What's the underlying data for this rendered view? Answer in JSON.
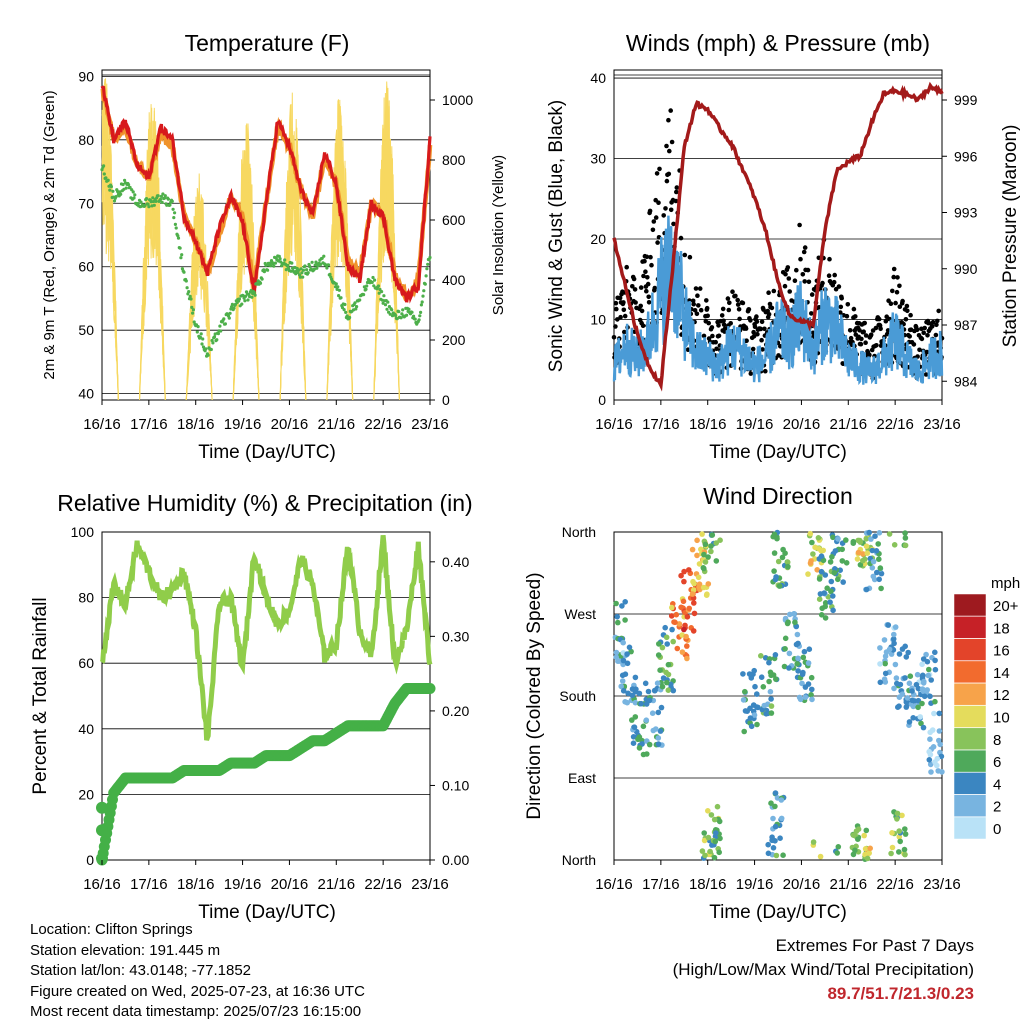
{
  "colors": {
    "temp2m": "#d7191c",
    "temp9m": "#f0932b",
    "dewpoint": "#4daf4a",
    "solar": "#f7d860",
    "wind": "#4a9bd6",
    "gust": "#000000",
    "pressure": "#a31a1a",
    "rh": "#90cd4a",
    "rain": "#44b047"
  },
  "x_ticks": [
    "16/16",
    "17/16",
    "18/16",
    "19/16",
    "20/16",
    "21/16",
    "22/16",
    "23/16"
  ],
  "chart_data": [
    {
      "id": "temperature",
      "type": "line",
      "title": "Temperature (F)",
      "xlabel": "Time (Day/UTC)",
      "ylabel": "2m & 9m T (Red, Orange) & 2m Td (Green)",
      "y2label": "Solar Insolation (Yellow)",
      "ylim": [
        39,
        91
      ],
      "y2lim": [
        0,
        1100
      ],
      "y_ticks": [
        "40",
        "50",
        "60",
        "70",
        "80",
        "90"
      ],
      "y2_ticks": [
        "0",
        "200",
        "400",
        "600",
        "800",
        "1000"
      ],
      "x": [
        0,
        0.25,
        0.5,
        0.75,
        1,
        1.25,
        1.5,
        1.75,
        2,
        2.25,
        2.5,
        2.75,
        3,
        3.25,
        3.5,
        3.75,
        4,
        4.25,
        4.5,
        4.75,
        5,
        5.25,
        5.5,
        5.75,
        6,
        6.25,
        6.5,
        6.75,
        7
      ],
      "series": [
        {
          "values": [
            89,
            80,
            83,
            76,
            74,
            82,
            80,
            68,
            64,
            59,
            66,
            71,
            67,
            56,
            70,
            83,
            79,
            72,
            68,
            78,
            73,
            60,
            58,
            70,
            68,
            58,
            55,
            57,
            80
          ]
        },
        {
          "values": [
            88,
            80,
            82,
            76,
            74,
            81,
            79,
            68,
            64,
            59,
            65,
            71,
            68,
            57,
            70,
            82,
            79,
            72,
            68,
            77,
            73,
            61,
            59,
            70,
            68,
            59,
            55,
            58,
            79
          ]
        },
        {
          "values": [
            76,
            71,
            73,
            70,
            70,
            71,
            70,
            59,
            51,
            46,
            50,
            53,
            55,
            56,
            60,
            61,
            60,
            59,
            60,
            61,
            57,
            52,
            55,
            58,
            55,
            52,
            53,
            51,
            62
          ]
        }
      ],
      "solar_peak": [
        1080,
        1050,
        760,
        950,
        1050,
        1040,
        1070,
        0
      ]
    },
    {
      "id": "winds",
      "type": "scatter",
      "title": "Winds (mph) & Pressure (mb)",
      "xlabel": "Time (Day/UTC)",
      "ylabel": "Sonic Wind & Gust (Blue, Black)",
      "y2label": "Station Pressure (Maroon)",
      "ylim": [
        0,
        41
      ],
      "y2lim": [
        983,
        1000.6
      ],
      "y_ticks": [
        "0",
        "10",
        "20",
        "30",
        "40"
      ],
      "y2_ticks": [
        "984",
        "987",
        "990",
        "993",
        "996",
        "999"
      ],
      "x": [
        0,
        0.25,
        0.5,
        0.75,
        1,
        1.25,
        1.5,
        1.75,
        2,
        2.25,
        2.5,
        2.75,
        3,
        3.25,
        3.5,
        3.75,
        4,
        4.25,
        4.5,
        4.75,
        5,
        5.25,
        5.5,
        5.75,
        6,
        6.25,
        6.5,
        6.75,
        7
      ],
      "series": [
        {
          "values": [
            5,
            8,
            6,
            9,
            16,
            20,
            12,
            7,
            6,
            5,
            8,
            7,
            5,
            6,
            10,
            9,
            12,
            7,
            12,
            10,
            6,
            5,
            4,
            6,
            9,
            6,
            4,
            6,
            7
          ]
        },
        {
          "values": [
            12,
            16,
            14,
            22,
            30,
            38,
            22,
            14,
            12,
            10,
            14,
            12,
            10,
            12,
            16,
            16,
            22,
            14,
            20,
            16,
            12,
            10,
            8,
            12,
            16,
            12,
            8,
            10,
            11
          ]
        },
        {
          "values": [
            991.6,
            989,
            986.5,
            984.8,
            983.8,
            990,
            996.5,
            998.8,
            998.5,
            997.5,
            996.7,
            995.3,
            993.8,
            991.9,
            989.3,
            987.5,
            987.2,
            987,
            992,
            995.2,
            995.7,
            996,
            997.8,
            999.3,
            999.5,
            999.3,
            999,
            999.7,
            999.4
          ]
        }
      ]
    },
    {
      "id": "humidity",
      "type": "line",
      "title": "Relative Humidity (%) & Precipitation (in)",
      "xlabel": "Time (Day/UTC)",
      "ylabel": "Percent & Total Rainfall",
      "ylim": [
        0,
        100
      ],
      "y2lim": [
        0,
        0.44
      ],
      "y_ticks": [
        "0",
        "20",
        "40",
        "60",
        "80",
        "100"
      ],
      "y2_ticks": [
        "0.00",
        "0.10",
        "0.20",
        "0.30",
        "0.40"
      ],
      "x": [
        0,
        0.25,
        0.5,
        0.75,
        1,
        1.25,
        1.5,
        1.75,
        2,
        2.25,
        2.5,
        2.75,
        3,
        3.25,
        3.5,
        3.75,
        4,
        4.25,
        4.5,
        4.75,
        5,
        5.25,
        5.5,
        5.75,
        6,
        6.25,
        6.5,
        6.75,
        7
      ],
      "series": [
        {
          "values": [
            60,
            84,
            78,
            96,
            88,
            80,
            82,
            88,
            70,
            36,
            78,
            80,
            58,
            94,
            80,
            72,
            76,
            92,
            84,
            62,
            66,
            96,
            70,
            62,
            98,
            60,
            70,
            96,
            60
          ]
        },
        {
          "values": [
            0.0,
            0.09,
            0.11,
            0.11,
            0.11,
            0.11,
            0.11,
            0.12,
            0.12,
            0.12,
            0.12,
            0.13,
            0.13,
            0.13,
            0.14,
            0.14,
            0.14,
            0.15,
            0.16,
            0.16,
            0.17,
            0.18,
            0.18,
            0.18,
            0.18,
            0.21,
            0.23,
            0.23,
            0.23
          ]
        }
      ]
    },
    {
      "id": "direction",
      "type": "scatter",
      "title": "Wind Direction",
      "xlabel": "Time (Day/UTC)",
      "ylabel": "Direction (Colored By Speed)",
      "y_ticks": [
        "North",
        "East",
        "South",
        "West",
        "North"
      ],
      "legend_title": "mph",
      "legend_labels": [
        "20+",
        "18",
        "16",
        "14",
        "12",
        "10",
        "8",
        "6",
        "4",
        "2",
        "0"
      ],
      "legend_colors": [
        "#9e1a1f",
        "#c62127",
        "#e3442a",
        "#f26b2e",
        "#f7a34a",
        "#e4dc5c",
        "#88c35b",
        "#4fa95b",
        "#3b86c1",
        "#78b4e0",
        "#b9e2f7"
      ],
      "clusters": [
        {
          "x": 0.1,
          "dir": 250,
          "spd": 4
        },
        {
          "x": 0.3,
          "dir": 200,
          "spd": 3
        },
        {
          "x": 0.55,
          "dir": 150,
          "spd": 5
        },
        {
          "x": 0.85,
          "dir": 160,
          "spd": 4
        },
        {
          "x": 1.1,
          "dir": 220,
          "spd": 6
        },
        {
          "x": 1.4,
          "dir": 255,
          "spd": 13
        },
        {
          "x": 1.6,
          "dir": 285,
          "spd": 15
        },
        {
          "x": 1.85,
          "dir": 325,
          "spd": 11
        },
        {
          "x": 2.05,
          "dir": 350,
          "spd": 7
        },
        {
          "x": 2.1,
          "dir": 25,
          "spd": 7
        },
        {
          "x": 2.9,
          "dir": 175,
          "spd": 4
        },
        {
          "x": 3.3,
          "dir": 195,
          "spd": 5
        },
        {
          "x": 3.45,
          "dir": 40,
          "spd": 4
        },
        {
          "x": 3.55,
          "dir": 330,
          "spd": 6
        },
        {
          "x": 3.8,
          "dir": 240,
          "spd": 4
        },
        {
          "x": 4.05,
          "dir": 200,
          "spd": 4
        },
        {
          "x": 4.3,
          "dir": 345,
          "spd": 9
        },
        {
          "x": 4.55,
          "dir": 300,
          "spd": 5
        },
        {
          "x": 4.8,
          "dir": 340,
          "spd": 5
        },
        {
          "x": 5.25,
          "dir": 10,
          "spd": 8
        },
        {
          "x": 5.35,
          "dir": 355,
          "spd": 9
        },
        {
          "x": 5.55,
          "dir": 330,
          "spd": 4
        },
        {
          "x": 5.85,
          "dir": 225,
          "spd": 3
        },
        {
          "x": 6.05,
          "dir": 20,
          "spd": 7
        },
        {
          "x": 6.15,
          "dir": 200,
          "spd": 4
        },
        {
          "x": 6.45,
          "dir": 170,
          "spd": 3
        },
        {
          "x": 6.7,
          "dir": 200,
          "spd": 3
        },
        {
          "x": 6.9,
          "dir": 130,
          "spd": 2
        }
      ]
    }
  ],
  "footer": {
    "location": "Location: Clifton Springs",
    "elevation": "Station elevation: 191.445 m",
    "latlon": "Station lat/lon: 43.0148; -77.1852",
    "created": "Figure created on Wed, 2025-07-23, at 16:36 UTC",
    "latest": "Most recent data timestamp: 2025/07/23 16:15:00"
  },
  "extremes": {
    "title": "Extremes For Past 7 Days",
    "subtitle": "(High/Low/Max Wind/Total Precipitation)",
    "values": "89.7/51.7/21.3/0.23"
  }
}
